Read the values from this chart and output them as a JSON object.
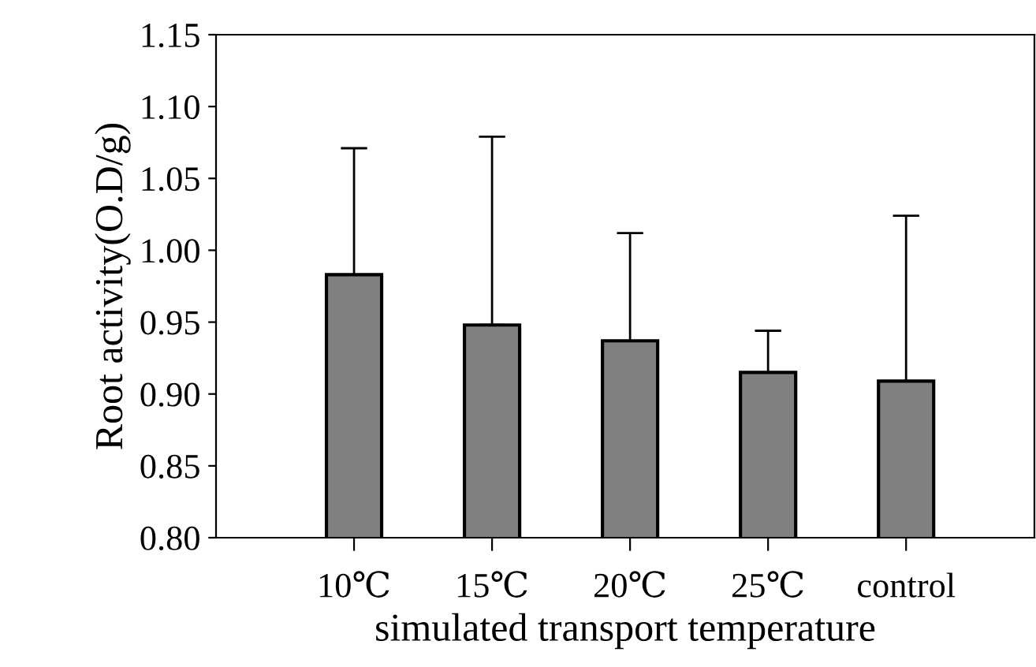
{
  "chart_data": {
    "type": "bar",
    "categories": [
      "10℃",
      "15℃",
      "20℃",
      "25℃",
      "control"
    ],
    "values": [
      0.983,
      0.948,
      0.937,
      0.915,
      0.909
    ],
    "errors": [
      [
        0.983,
        1.071
      ],
      [
        0.948,
        1.079
      ],
      [
        0.937,
        1.012
      ],
      [
        0.915,
        0.944
      ],
      [
        0.909,
        1.024
      ]
    ],
    "color": "#808080",
    "xlabel": "simulated transport temperature",
    "ylabel": "Root activity(O.D/g)",
    "ylim": [
      0.8,
      1.15
    ],
    "yticks": [
      {
        "value": 0.8,
        "label": "0.80"
      },
      {
        "value": 0.85,
        "label": "0.85"
      },
      {
        "value": 0.9,
        "label": "0.90"
      },
      {
        "value": 0.95,
        "label": "0.95"
      },
      {
        "value": 1.0,
        "label": "1.00"
      },
      {
        "value": 1.05,
        "label": "1.05"
      },
      {
        "value": 1.1,
        "label": "1.10"
      },
      {
        "value": 1.15,
        "label": "1.15"
      }
    ],
    "grid": false,
    "legend": false
  }
}
